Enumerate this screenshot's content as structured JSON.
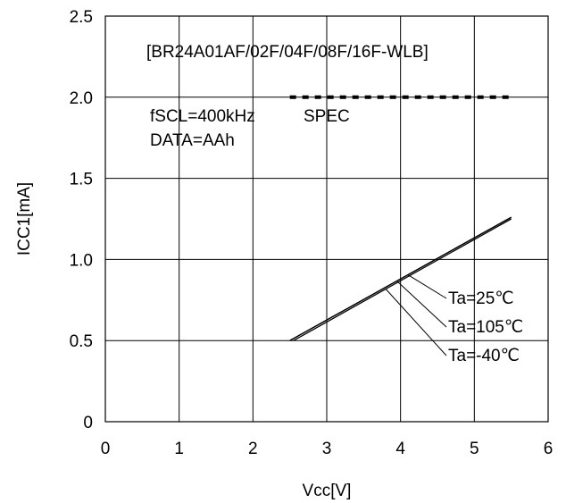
{
  "chart_data": {
    "type": "line",
    "title": "[BR24A01AF/02F/04F/08F/16F-WLB]",
    "xlabel": "Vcc[V]",
    "ylabel": "ICC1[mA]",
    "xlim": [
      0,
      6
    ],
    "ylim": [
      0,
      2.5
    ],
    "x_ticks": [
      "0",
      "1",
      "2",
      "3",
      "4",
      "5",
      "6"
    ],
    "y_ticks": [
      "0",
      "0.5",
      "1.0",
      "1.5",
      "2.0",
      "2.5"
    ],
    "grid": true,
    "annotations": {
      "condition_line1": "fSCL=400kHz",
      "condition_line2": "DATA=AAh",
      "spec_label": "SPEC"
    },
    "spec": {
      "y": 2.0,
      "x": [
        2.5,
        5.5
      ],
      "style": "dashed"
    },
    "series": [
      {
        "name": "Ta=25℃",
        "x": [
          2.5,
          5.5
        ],
        "y": [
          0.5,
          1.26
        ]
      },
      {
        "name": "Ta=105℃",
        "x": [
          2.5,
          5.5
        ],
        "y": [
          0.5,
          1.26
        ]
      },
      {
        "name": "Ta=-40℃",
        "x": [
          2.55,
          5.5
        ],
        "y": [
          0.5,
          1.25
        ]
      }
    ],
    "series_label_anchor_x": [
      4.1,
      3.95,
      3.8
    ]
  }
}
